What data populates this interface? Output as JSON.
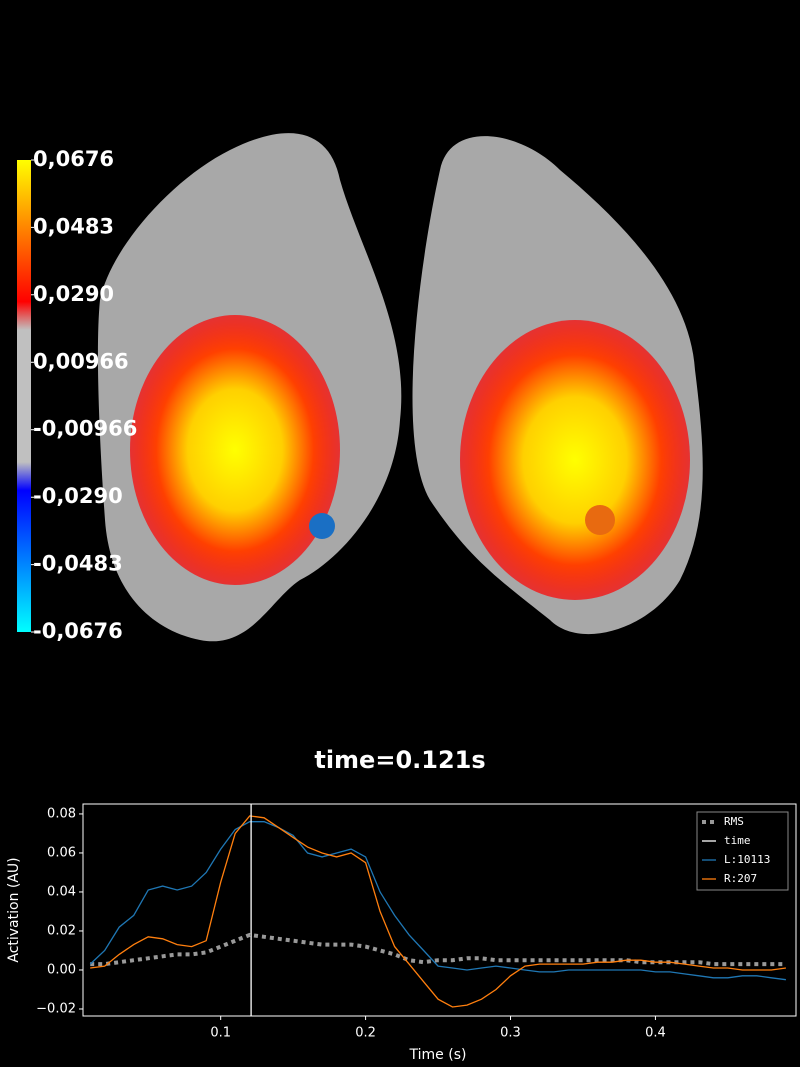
{
  "colorbar": {
    "lim": [
      -0.0676,
      0.0676
    ],
    "ticks": [
      {
        "value": 0.0676,
        "label": "0,0676"
      },
      {
        "value": 0.0483,
        "label": "0,0483"
      },
      {
        "value": 0.029,
        "label": "0,0290"
      },
      {
        "value": 0.00966,
        "label": "0,00966"
      },
      {
        "value": -0.00966,
        "label": "-0,00966"
      },
      {
        "value": -0.029,
        "label": "-0,0290"
      },
      {
        "value": -0.0483,
        "label": "-0,0483"
      },
      {
        "value": -0.0676,
        "label": "-0,0676"
      }
    ]
  },
  "time_label": "time=0.121s",
  "chart_data": {
    "type": "line",
    "xlabel": "Time (s)",
    "ylabel": "Activation (AU)",
    "x": [
      0.01,
      0.02,
      0.03,
      0.04,
      0.05,
      0.06,
      0.07,
      0.08,
      0.09,
      0.1,
      0.11,
      0.12,
      0.13,
      0.14,
      0.15,
      0.16,
      0.17,
      0.18,
      0.19,
      0.2,
      0.21,
      0.22,
      0.23,
      0.24,
      0.25,
      0.26,
      0.27,
      0.28,
      0.29,
      0.3,
      0.31,
      0.32,
      0.33,
      0.34,
      0.35,
      0.36,
      0.37,
      0.38,
      0.39,
      0.4,
      0.41,
      0.42,
      0.43,
      0.44,
      0.45,
      0.46,
      0.47,
      0.48,
      0.49
    ],
    "series": [
      {
        "name": "RMS",
        "color": "#999999",
        "dashed": true,
        "values": [
          0.003,
          0.003,
          0.004,
          0.005,
          0.006,
          0.007,
          0.008,
          0.008,
          0.009,
          0.012,
          0.015,
          0.018,
          0.017,
          0.016,
          0.015,
          0.014,
          0.013,
          0.013,
          0.013,
          0.012,
          0.01,
          0.008,
          0.005,
          0.004,
          0.005,
          0.005,
          0.006,
          0.006,
          0.005,
          0.005,
          0.005,
          0.005,
          0.005,
          0.005,
          0.005,
          0.005,
          0.005,
          0.005,
          0.004,
          0.004,
          0.004,
          0.004,
          0.004,
          0.003,
          0.003,
          0.003,
          0.003,
          0.003,
          0.003
        ]
      },
      {
        "name": "L:10113",
        "color": "#1f77b4",
        "values": [
          0.003,
          0.01,
          0.022,
          0.028,
          0.041,
          0.043,
          0.041,
          0.043,
          0.05,
          0.062,
          0.072,
          0.076,
          0.076,
          0.073,
          0.069,
          0.06,
          0.058,
          0.06,
          0.062,
          0.058,
          0.04,
          0.028,
          0.018,
          0.01,
          0.002,
          0.001,
          0,
          0.001,
          0.002,
          0.001,
          0,
          -0.001,
          -0.001,
          0,
          0,
          0,
          0,
          0,
          0,
          -0.001,
          -0.001,
          -0.002,
          -0.003,
          -0.004,
          -0.004,
          -0.003,
          -0.003,
          -0.004,
          -0.005
        ]
      },
      {
        "name": "R:207",
        "color": "#ff7f0e",
        "values": [
          0.001,
          0.002,
          0.008,
          0.013,
          0.017,
          0.016,
          0.013,
          0.012,
          0.015,
          0.045,
          0.07,
          0.079,
          0.078,
          0.073,
          0.068,
          0.063,
          0.06,
          0.058,
          0.06,
          0.055,
          0.03,
          0.012,
          0.003,
          -0.006,
          -0.015,
          -0.019,
          -0.018,
          -0.015,
          -0.01,
          -0.003,
          0.002,
          0.003,
          0.003,
          0.003,
          0.003,
          0.004,
          0.004,
          0.005,
          0.005,
          0.004,
          0.004,
          0.003,
          0.002,
          0.001,
          0.001,
          0,
          0,
          0,
          0.001
        ]
      }
    ],
    "time": {
      "name": "time",
      "value": 0.121,
      "color": "#ffffff"
    },
    "xlim": [
      0.005,
      0.497
    ],
    "ylim": [
      -0.0236,
      0.0851
    ],
    "xticks": [
      0.1,
      0.2,
      0.3,
      0.4
    ],
    "yticks": [
      {
        "value": -0.02,
        "label": "−0.02"
      },
      {
        "value": 0,
        "label": "0.00"
      },
      0.02,
      0.04,
      0.06,
      0.08
    ],
    "legend": "upper right"
  }
}
